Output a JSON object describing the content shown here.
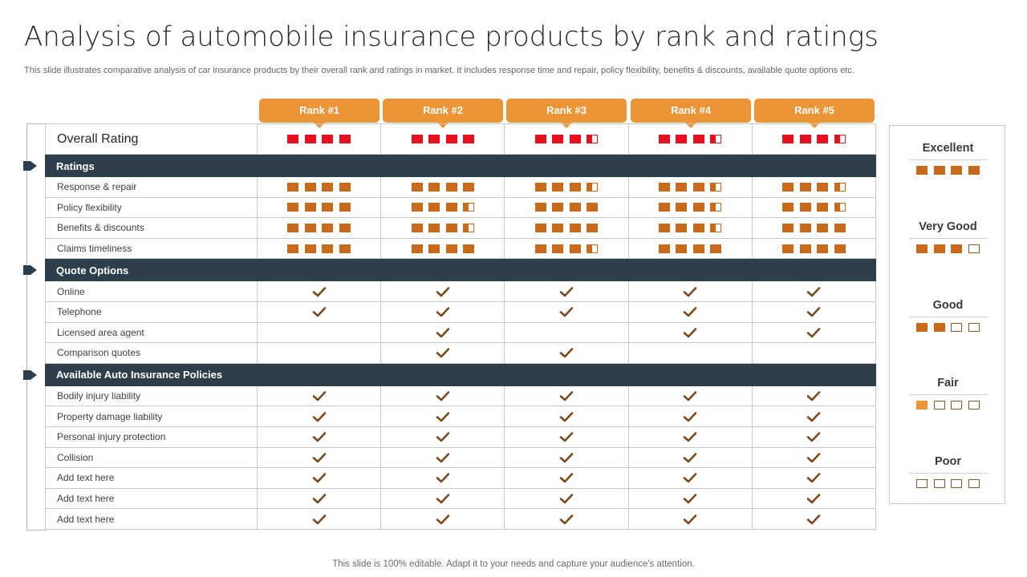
{
  "title": "Analysis of automobile insurance products by rank and ratings",
  "subtitle": "This slide illustrates comparative analysis of car insurance products by their overall rank and ratings in market. It includes response time and repair, policy flexibility,  benefits & discounts, available quote options etc.",
  "footer": "This slide is 100% editable. Adapt it to your needs and capture your audience's attention.",
  "colors": {
    "accent": "#ec9537",
    "box": "#c86a1a",
    "overall_red": "#e8101f",
    "section_bar": "#2e3e4b",
    "check": "#7a4a1e"
  },
  "ranks": [
    "Rank #1",
    "Rank #2",
    "Rank #3",
    "Rank #4",
    "Rank #5"
  ],
  "overall": {
    "label": "Overall Rating",
    "ratings": [
      4,
      4,
      3.5,
      3.5,
      3.5
    ]
  },
  "sections": [
    {
      "title": "Ratings",
      "type": "rating",
      "rows": [
        {
          "label": "Response & repair",
          "values": [
            4,
            4,
            3.5,
            3.5,
            3.5
          ]
        },
        {
          "label": "Policy flexibility",
          "values": [
            4,
            3.5,
            4,
            3.5,
            3.5
          ]
        },
        {
          "label": "Benefits & discounts",
          "values": [
            4,
            3.5,
            4,
            3.5,
            4
          ]
        },
        {
          "label": "Claims timeliness",
          "values": [
            4,
            4,
            3.5,
            4,
            4
          ]
        }
      ]
    },
    {
      "title": "Quote Options",
      "type": "check",
      "rows": [
        {
          "label": "Online",
          "values": [
            true,
            true,
            true,
            true,
            true
          ]
        },
        {
          "label": "Telephone",
          "values": [
            true,
            true,
            true,
            true,
            true
          ]
        },
        {
          "label": "Licensed area agent",
          "values": [
            false,
            true,
            false,
            true,
            true
          ]
        },
        {
          "label": "Comparison quotes",
          "values": [
            false,
            true,
            true,
            false,
            false
          ]
        }
      ]
    },
    {
      "title": "Available Auto Insurance Policies",
      "type": "check",
      "rows": [
        {
          "label": "Bodily injury liability",
          "values": [
            true,
            true,
            true,
            true,
            true
          ]
        },
        {
          "label": "Property damage liability",
          "values": [
            true,
            true,
            true,
            true,
            true
          ]
        },
        {
          "label": "Personal injury protection",
          "values": [
            true,
            true,
            true,
            true,
            true
          ]
        },
        {
          "label": "Collision",
          "values": [
            true,
            true,
            true,
            true,
            true
          ]
        },
        {
          "label": "Add text here",
          "values": [
            true,
            true,
            true,
            true,
            true
          ]
        },
        {
          "label": "Add text here",
          "values": [
            true,
            true,
            true,
            true,
            true
          ]
        },
        {
          "label": "Add text here",
          "values": [
            true,
            true,
            true,
            true,
            true
          ]
        }
      ]
    }
  ],
  "legend": [
    {
      "label": "Excellent",
      "filled": 4,
      "style": "full"
    },
    {
      "label": "Very Good",
      "filled": 3,
      "style": "full"
    },
    {
      "label": "Good",
      "filled": 2,
      "style": "full"
    },
    {
      "label": "Fair",
      "filled": 1,
      "style": "light"
    },
    {
      "label": "Poor",
      "filled": 0,
      "style": "full"
    }
  ]
}
